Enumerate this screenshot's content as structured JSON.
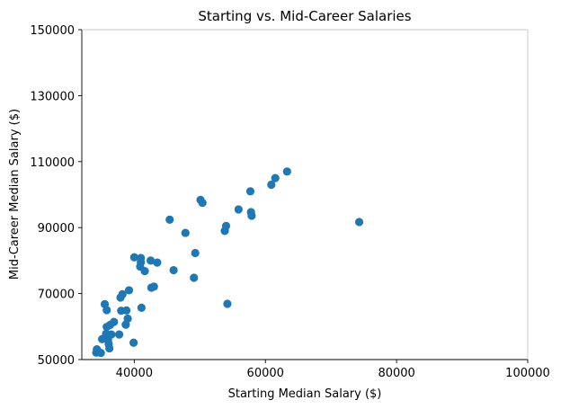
{
  "chart_data": {
    "type": "scatter",
    "title": "Starting vs. Mid-Career Salaries",
    "xlabel": "Starting Median Salary ($)",
    "ylabel": "Mid-Career Median Salary ($)",
    "xlim": [
      32000,
      100000
    ],
    "ylim": [
      50000,
      150000
    ],
    "xticks": [
      40000,
      60000,
      80000,
      100000
    ],
    "xtick_labels": [
      "40000",
      "60000",
      "80000",
      "100000"
    ],
    "yticks": [
      50000,
      70000,
      90000,
      110000,
      130000,
      150000
    ],
    "ytick_labels": [
      "50000",
      "70000",
      "90000",
      "110000",
      "130000",
      "150000"
    ],
    "grid": false,
    "marker_color": "#1f77b4",
    "points": [
      {
        "x": 34200,
        "y": 52100
      },
      {
        "x": 34300,
        "y": 53100
      },
      {
        "x": 34900,
        "y": 52000
      },
      {
        "x": 35100,
        "y": 56200
      },
      {
        "x": 35500,
        "y": 66800
      },
      {
        "x": 35700,
        "y": 57800
      },
      {
        "x": 35800,
        "y": 59900
      },
      {
        "x": 35800,
        "y": 65000
      },
      {
        "x": 36000,
        "y": 56000
      },
      {
        "x": 36100,
        "y": 54700
      },
      {
        "x": 36200,
        "y": 53400
      },
      {
        "x": 36300,
        "y": 60500
      },
      {
        "x": 36500,
        "y": 57600
      },
      {
        "x": 36900,
        "y": 61400
      },
      {
        "x": 37700,
        "y": 57600
      },
      {
        "x": 37900,
        "y": 68800
      },
      {
        "x": 38000,
        "y": 64800
      },
      {
        "x": 38200,
        "y": 69800
      },
      {
        "x": 38700,
        "y": 60600
      },
      {
        "x": 38800,
        "y": 64900
      },
      {
        "x": 39000,
        "y": 62400
      },
      {
        "x": 39200,
        "y": 71000
      },
      {
        "x": 39900,
        "y": 55100
      },
      {
        "x": 40000,
        "y": 81000
      },
      {
        "x": 40900,
        "y": 78200
      },
      {
        "x": 41000,
        "y": 80800
      },
      {
        "x": 41000,
        "y": 79500
      },
      {
        "x": 41100,
        "y": 65700
      },
      {
        "x": 41600,
        "y": 76800
      },
      {
        "x": 42500,
        "y": 80000
      },
      {
        "x": 42600,
        "y": 71800
      },
      {
        "x": 43000,
        "y": 72100
      },
      {
        "x": 43500,
        "y": 79400
      },
      {
        "x": 45400,
        "y": 92400
      },
      {
        "x": 46000,
        "y": 77100
      },
      {
        "x": 47800,
        "y": 88400
      },
      {
        "x": 49100,
        "y": 74800
      },
      {
        "x": 49300,
        "y": 82300
      },
      {
        "x": 50100,
        "y": 98400
      },
      {
        "x": 50400,
        "y": 97500
      },
      {
        "x": 53800,
        "y": 89000
      },
      {
        "x": 54000,
        "y": 90500
      },
      {
        "x": 54200,
        "y": 66900
      },
      {
        "x": 55900,
        "y": 95500
      },
      {
        "x": 57700,
        "y": 101000
      },
      {
        "x": 57800,
        "y": 94700
      },
      {
        "x": 57900,
        "y": 93600
      },
      {
        "x": 60900,
        "y": 103000
      },
      {
        "x": 61500,
        "y": 105000
      },
      {
        "x": 63300,
        "y": 107000
      },
      {
        "x": 74300,
        "y": 91700
      }
    ]
  }
}
